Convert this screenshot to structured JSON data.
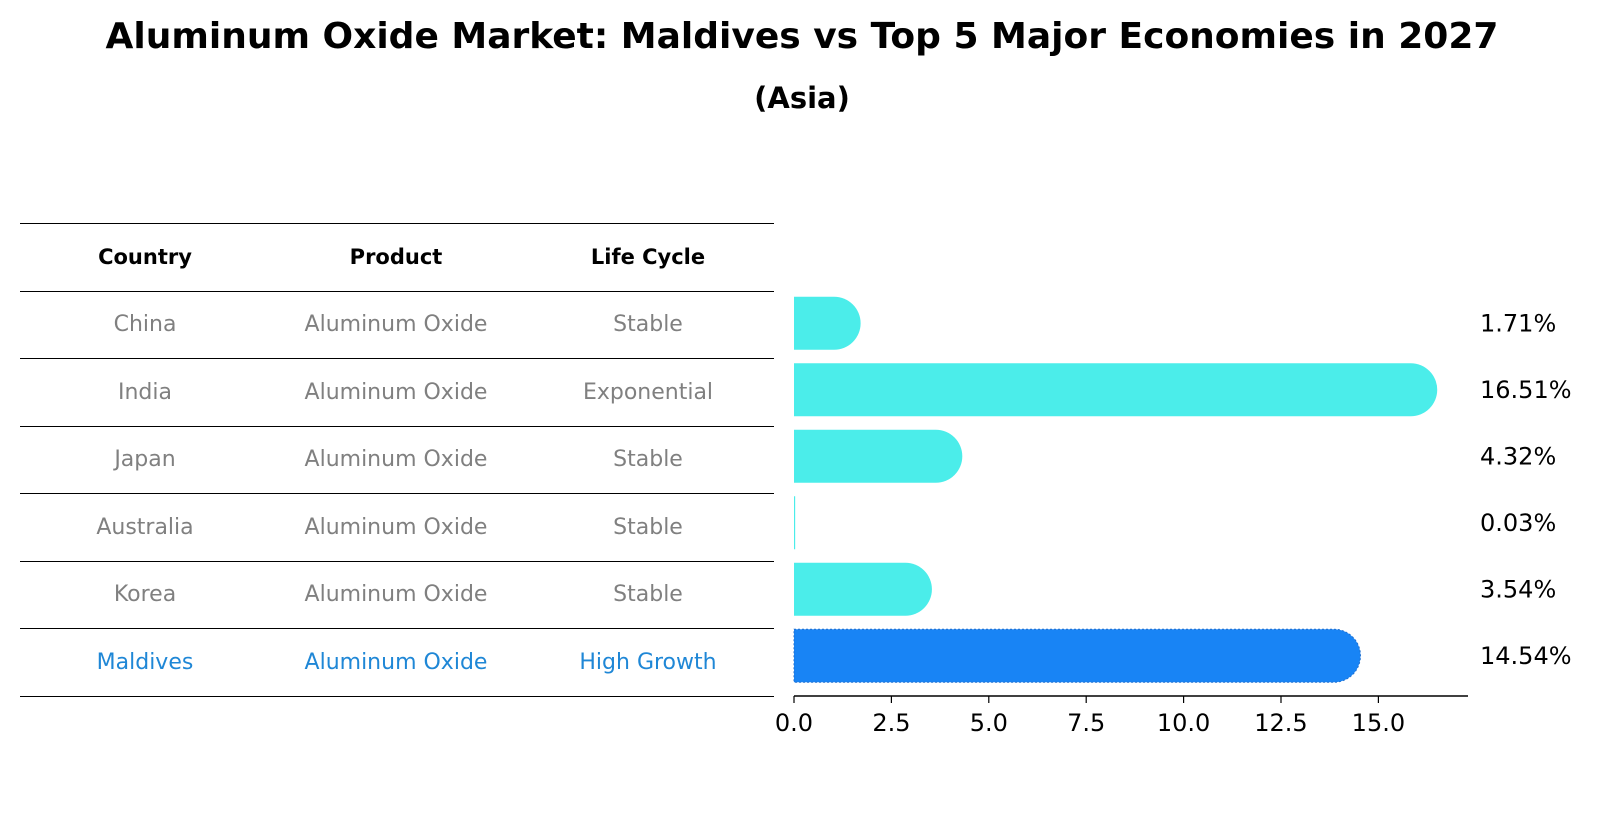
{
  "title": "Aluminum Oxide Market: Maldives vs Top 5 Major Economies in 2027",
  "subtitle": "(Asia)",
  "table": {
    "headers": [
      "Country",
      "Product",
      "Life Cycle"
    ],
    "rows": [
      {
        "country": "China",
        "product": "Aluminum Oxide",
        "life_cycle": "Stable"
      },
      {
        "country": "India",
        "product": "Aluminum Oxide",
        "life_cycle": "Exponential"
      },
      {
        "country": "Japan",
        "product": "Aluminum Oxide",
        "life_cycle": "Stable"
      },
      {
        "country": "Australia",
        "product": "Aluminum Oxide",
        "life_cycle": "Stable"
      },
      {
        "country": "Korea",
        "product": "Aluminum Oxide",
        "life_cycle": "Stable"
      },
      {
        "country": "Maldives",
        "product": "Aluminum Oxide",
        "life_cycle": "High Growth"
      }
    ]
  },
  "chart_data": {
    "type": "bar",
    "orientation": "horizontal",
    "categories": [
      "China",
      "India",
      "Japan",
      "Australia",
      "Korea",
      "Maldives"
    ],
    "values": [
      1.71,
      16.51,
      4.32,
      0.03,
      3.54,
      14.54
    ],
    "value_labels": [
      "1.71%",
      "16.51%",
      "4.32%",
      "0.03%",
      "3.54%",
      "14.54%"
    ],
    "highlight_category": "Maldives",
    "xlim": [
      0,
      17.3
    ],
    "xticks": [
      0.0,
      2.5,
      5.0,
      7.5,
      10.0,
      12.5,
      15.0
    ],
    "xtick_labels": [
      "0.0",
      "2.5",
      "5.0",
      "7.5",
      "10.0",
      "12.5",
      "15.0"
    ],
    "xlabel": "",
    "ylabel": "",
    "grid": false
  },
  "colors": {
    "bar": "#4bedea",
    "highlight_bar": "#1884f5",
    "highlight_text": "#1f87d6",
    "muted_text": "#808080"
  }
}
